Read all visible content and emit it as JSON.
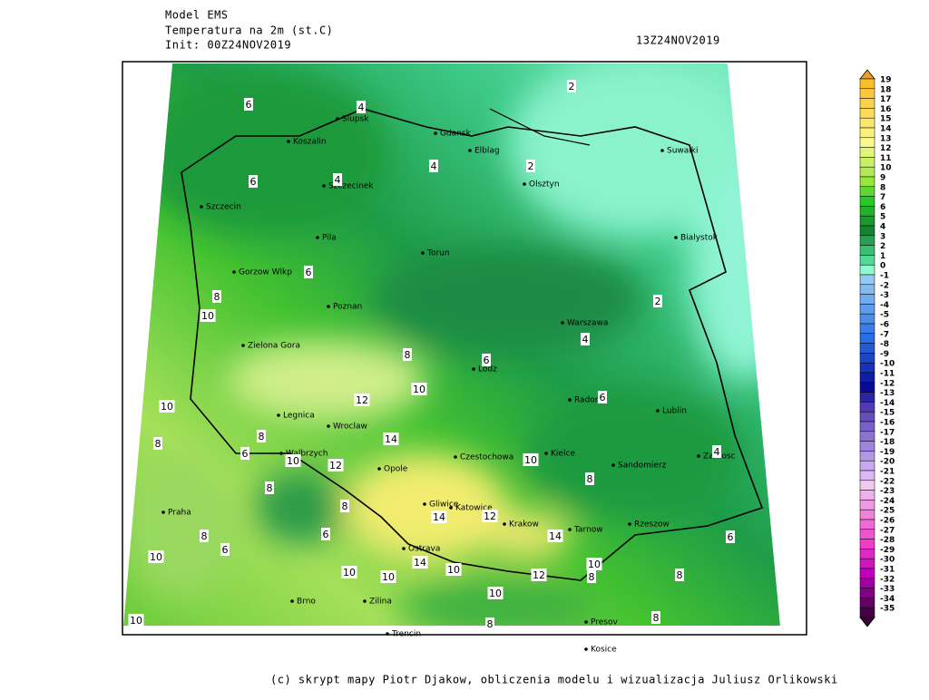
{
  "header": {
    "model": "Model EMS",
    "parameter": "Temperatura na 2m (st.C)",
    "init": "Init: 00Z24NOV2019",
    "valid": "13Z24NOV2019"
  },
  "cities": [
    "Slupsk",
    "Koszalin",
    "Gdansk",
    "Elblag",
    "Szczecinek",
    "Olsztyn",
    "Suwalki",
    "Szczecin",
    "Pila",
    "Bialystok",
    "Torun",
    "Gorzow Wlkp",
    "Poznan",
    "Warszawa",
    "Zielona Gora",
    "Lodz",
    "Radom",
    "Legnica",
    "Wroclaw",
    "Lublin",
    "Walbrzych",
    "Czestochowa",
    "Kielce",
    "Zamosc",
    "Sandomierz",
    "Opole",
    "Praha",
    "Gliwice",
    "Katowice",
    "Krakow",
    "Tarnow",
    "Rzeszow",
    "Ostrava",
    "Presov",
    "Brno",
    "Zilina",
    "Trencin",
    "Kosice"
  ],
  "contour_labels": [
    6,
    4,
    2,
    4,
    2,
    4,
    6,
    6,
    8,
    10,
    2,
    4,
    8,
    6,
    10,
    12,
    6,
    10,
    14,
    8,
    8,
    6,
    10,
    12,
    10,
    4,
    8,
    8,
    8,
    14,
    12,
    6,
    14,
    8,
    10,
    6,
    6,
    14,
    10,
    10,
    10,
    10,
    12,
    8,
    8,
    10,
    10,
    8,
    8
  ],
  "colorbar": {
    "levels": [
      19,
      18,
      17,
      16,
      15,
      14,
      13,
      12,
      11,
      10,
      9,
      8,
      7,
      6,
      5,
      4,
      3,
      2,
      1,
      0,
      -1,
      -2,
      -3,
      -4,
      -5,
      -6,
      -7,
      -8,
      -9,
      -10,
      -11,
      -12,
      -13,
      -14,
      -15,
      -16,
      -17,
      -18,
      -19,
      -20,
      -21,
      -22,
      -23,
      -24,
      -25,
      -26,
      -27,
      -28,
      -29,
      -30,
      -31,
      -32,
      -33,
      -34,
      -35
    ]
  },
  "footer": "(c) skrypt mapy Piotr Djakow, obliczenia modelu i wizualizacja Juliusz Orlikowski"
}
